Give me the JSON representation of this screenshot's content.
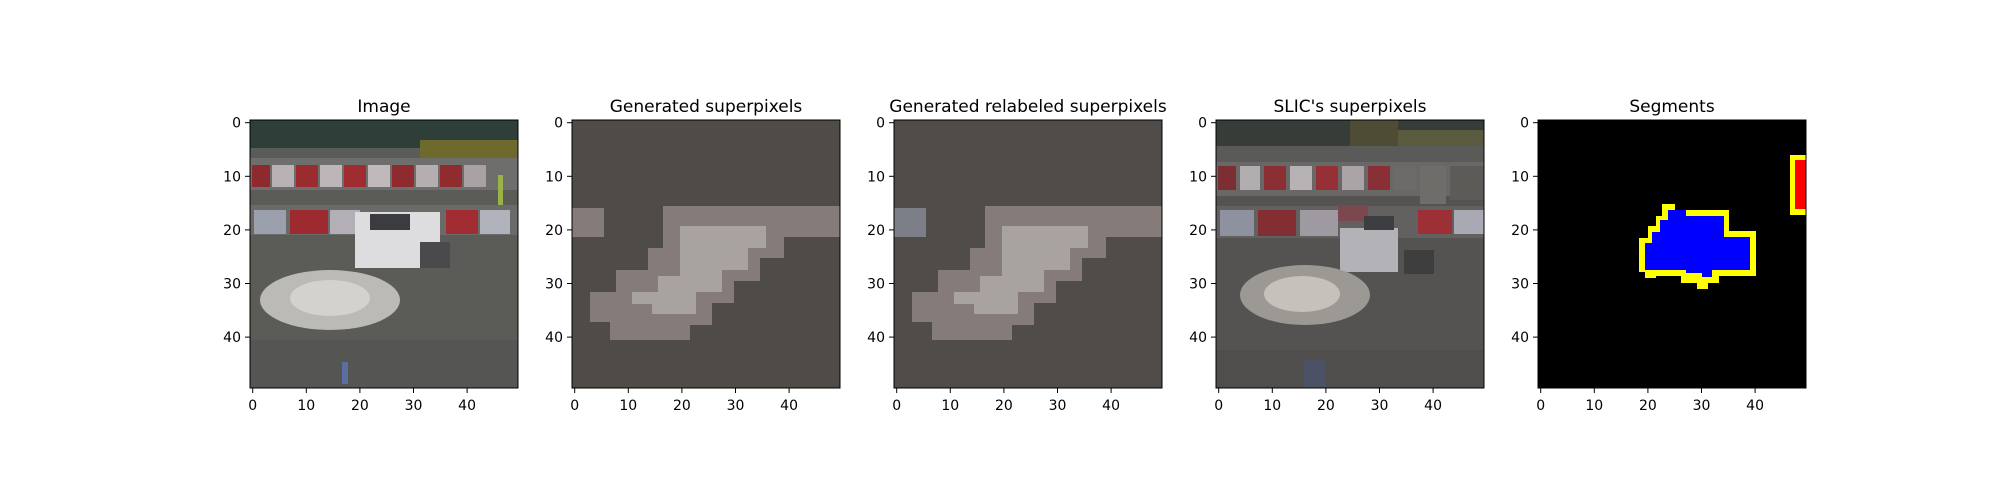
{
  "chart_data": [
    {
      "type": "heatmap",
      "title": "Image",
      "xticks": [
        "0",
        "10",
        "20",
        "30",
        "40"
      ],
      "yticks": [
        "0",
        "10",
        "20",
        "30",
        "40"
      ],
      "xlim": [
        -0.5,
        49.5
      ],
      "ylim": [
        49.5,
        -0.5
      ]
    },
    {
      "type": "heatmap",
      "title": "Generated superpixels",
      "xticks": [
        "0",
        "10",
        "20",
        "30",
        "40"
      ],
      "yticks": [
        "0",
        "10",
        "20",
        "30",
        "40"
      ],
      "xlim": [
        -0.5,
        49.5
      ],
      "ylim": [
        49.5,
        -0.5
      ]
    },
    {
      "type": "heatmap",
      "title": "Generated relabeled superpixels",
      "xticks": [
        "0",
        "10",
        "20",
        "30",
        "40"
      ],
      "yticks": [
        "0",
        "10",
        "20",
        "30",
        "40"
      ],
      "xlim": [
        -0.5,
        49.5
      ],
      "ylim": [
        49.5,
        -0.5
      ]
    },
    {
      "type": "heatmap",
      "title": "SLIC's superpixels",
      "xticks": [
        "0",
        "10",
        "20",
        "30",
        "40"
      ],
      "yticks": [
        "0",
        "10",
        "20",
        "30",
        "40"
      ],
      "xlim": [
        -0.5,
        49.5
      ],
      "ylim": [
        49.5,
        -0.5
      ]
    },
    {
      "type": "heatmap",
      "title": "Segments",
      "xticks": [
        "0",
        "10",
        "20",
        "30",
        "40"
      ],
      "yticks": [
        "0",
        "10",
        "20",
        "30",
        "40"
      ],
      "xlim": [
        -0.5,
        49.5
      ],
      "ylim": [
        49.5,
        -0.5
      ],
      "segment_colors": [
        "#000000",
        "#0000ff",
        "#ffff00",
        "#ff0000"
      ]
    }
  ]
}
